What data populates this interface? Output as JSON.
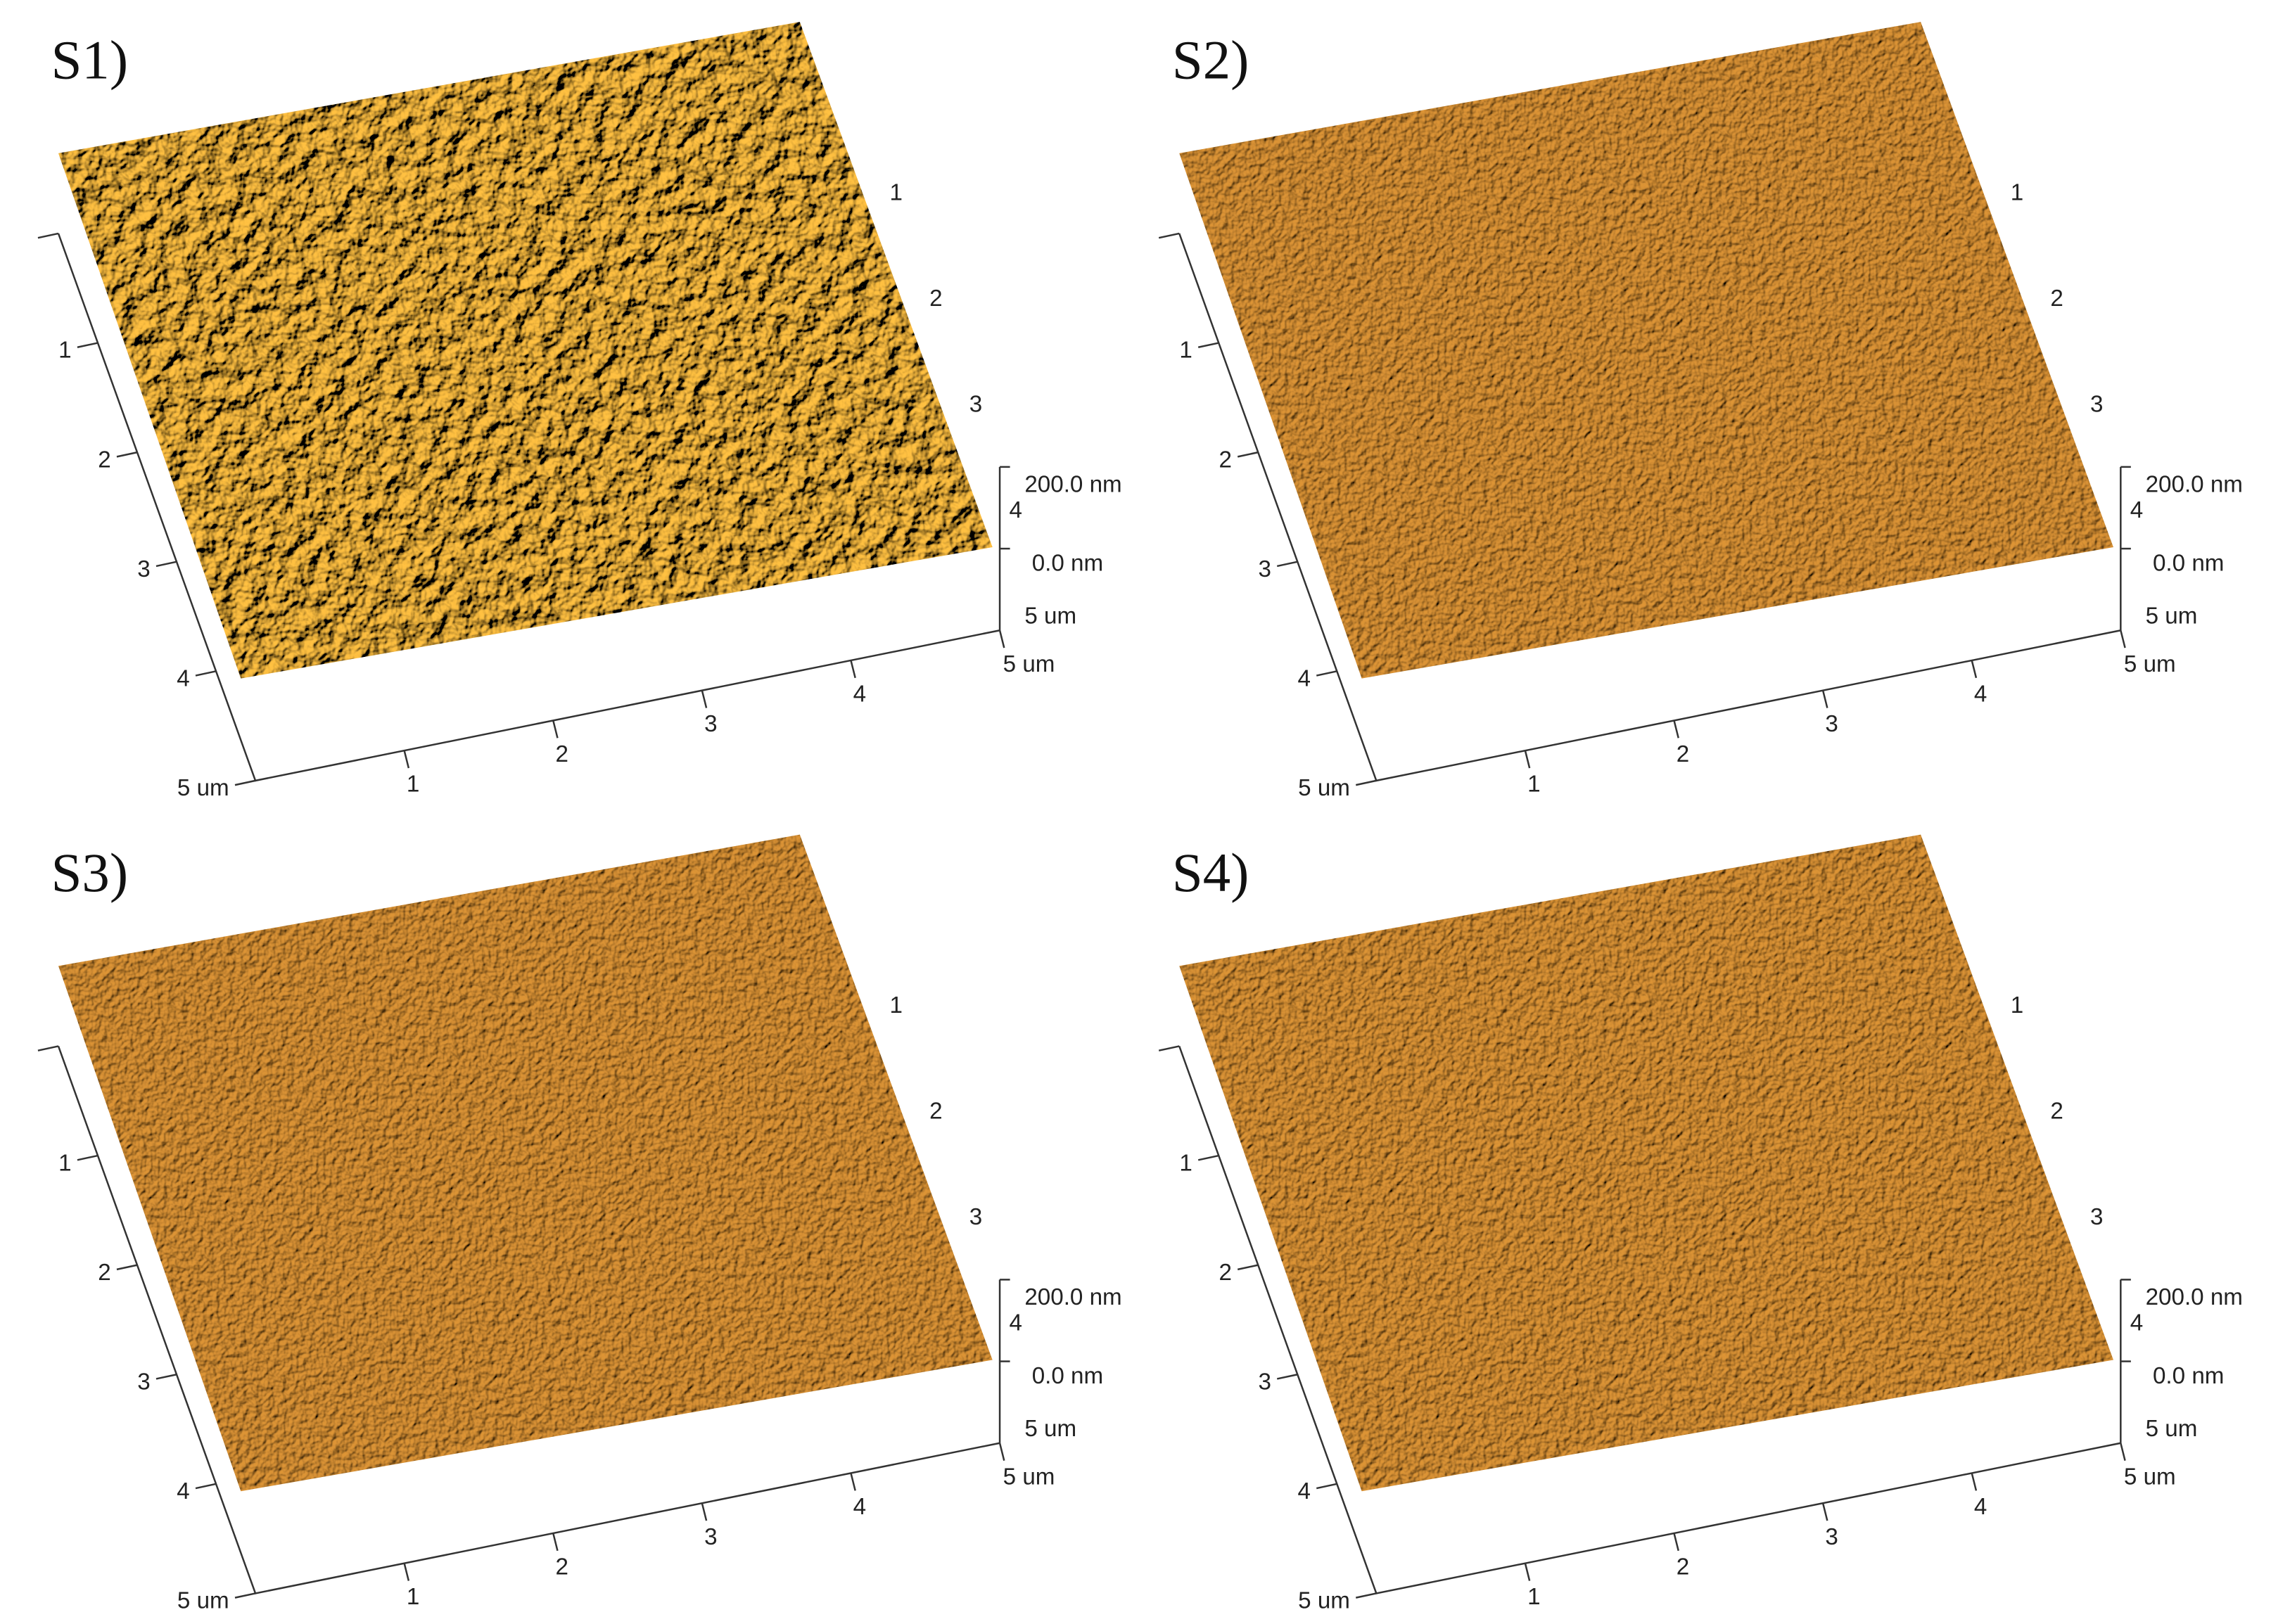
{
  "panels": [
    {
      "label": "S1)"
    },
    {
      "label": "S2)"
    },
    {
      "label": "S3)"
    },
    {
      "label": "S4)"
    }
  ],
  "axes": {
    "left_ticks": [
      "1",
      "2",
      "3",
      "4",
      "5 um"
    ],
    "bottom_ticks": [
      "1",
      "2",
      "3",
      "4",
      "5 um"
    ],
    "right_ticks": [
      "1",
      "2",
      "3",
      "4"
    ],
    "z_ticks": [
      "200.0 nm",
      "0.0 nm",
      "5 um"
    ]
  }
}
